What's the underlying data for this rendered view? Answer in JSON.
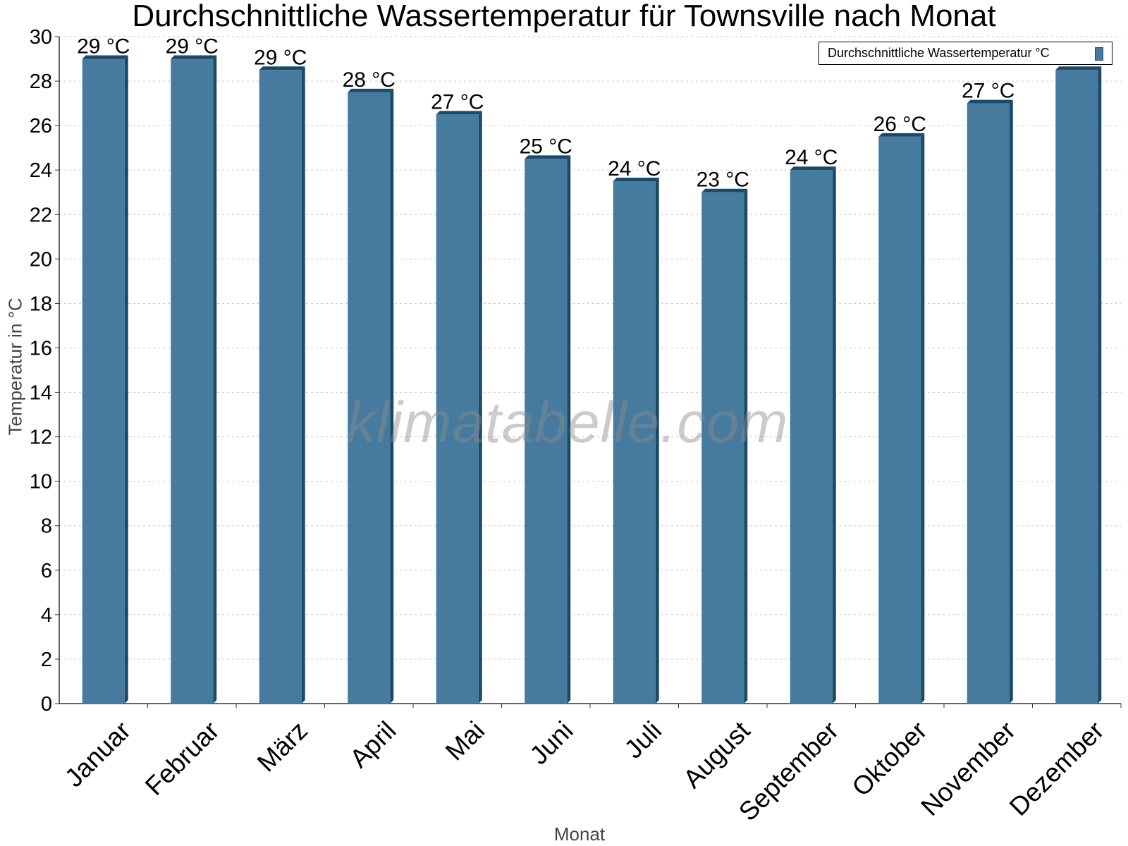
{
  "chart_data": {
    "type": "bar",
    "title": "Durchschnittliche Wassertemperatur für Townsville nach Monat",
    "xlabel": "Monat",
    "ylabel": "Temperatur in °C",
    "ylim": [
      0,
      30
    ],
    "yticks": [
      0,
      2,
      4,
      6,
      8,
      10,
      12,
      14,
      16,
      18,
      20,
      22,
      24,
      26,
      28,
      30
    ],
    "grid": true,
    "legend_position": "top-right",
    "categories": [
      "Januar",
      "Februar",
      "März",
      "April",
      "Mai",
      "Juni",
      "Juli",
      "August",
      "September",
      "Oktober",
      "November",
      "Dezember"
    ],
    "series": [
      {
        "name": "Durchschnittliche Wassertemperatur °C",
        "color": "#467b9f",
        "values": [
          29,
          29,
          28.5,
          27.5,
          26.5,
          24.5,
          23.5,
          23,
          24,
          25.5,
          27,
          28.5
        ],
        "data_labels": [
          "29 °C",
          "29 °C",
          "29 °C",
          "28 °C",
          "27 °C",
          "25 °C",
          "24 °C",
          "23 °C",
          "24 °C",
          "26 °C",
          "27 °C",
          ""
        ]
      }
    ]
  },
  "watermark": "klimatabelle.com",
  "colors": {
    "bar": "#467b9f",
    "bar_edge": "#1a4a6a",
    "grid": "#c8c8c8"
  }
}
